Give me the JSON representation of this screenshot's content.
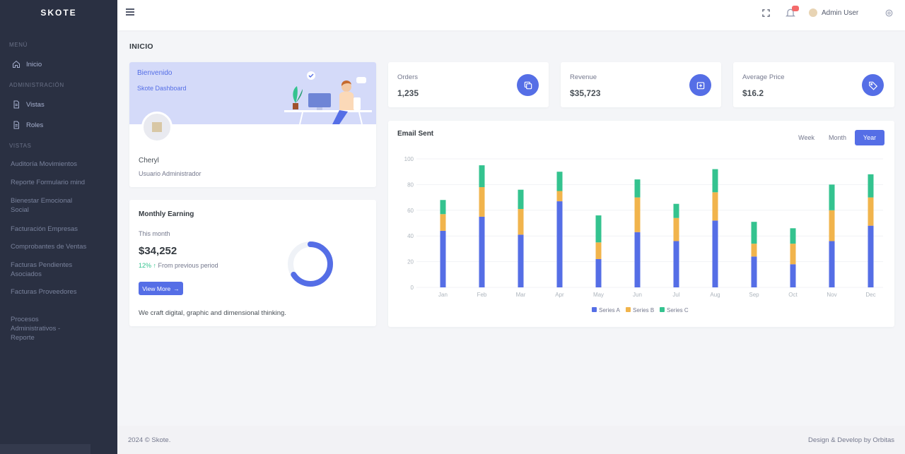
{
  "app": {
    "logo": "SKOTE"
  },
  "sidebar": {
    "section_menu": "MENÚ",
    "inicio": "Inicio",
    "section_admin": "ADMINISTRACIÓN",
    "vistas": "Vistas",
    "roles": "Roles",
    "section_vistas": "VISTAS",
    "links": [
      "Auditoría Movimientos",
      "Reporte Formulario mind",
      "Bienestar Emocional Social",
      "Facturación Empresas",
      "Comprobantes de Ventas",
      "Facturas Pendientes Asociados",
      "Facturas Proveedores",
      "Procesos Administrativos - Reporte"
    ]
  },
  "topbar": {
    "user_name": "Admin User"
  },
  "page": {
    "title": "INICIO"
  },
  "welcome": {
    "title": "Bienvenido",
    "subtitle": "Skote Dashboard",
    "name": "Cheryl",
    "role": "Usuario Administrador"
  },
  "earnings": {
    "title": "Monthly Earning",
    "sub": "This month",
    "value": "$34,252",
    "trend_pct": "12%",
    "trend_text": "From previous period",
    "button": "View More",
    "foot": "We craft digital, graphic and dimensional thinking."
  },
  "stats": [
    {
      "label": "Orders",
      "value": "1,235"
    },
    {
      "label": "Revenue",
      "value": "$35,723"
    },
    {
      "label": "Average Price",
      "value": "$16.2"
    }
  ],
  "chart_tabs": [
    "Week",
    "Month",
    "Year"
  ],
  "colors": {
    "accent": "#556ee6",
    "series_a": "#556ee6",
    "series_b": "#f1b44c",
    "series_c": "#34c38f"
  },
  "chart_data": {
    "type": "bar",
    "title": "Email Sent",
    "categories": [
      "Jan",
      "Feb",
      "Mar",
      "Apr",
      "May",
      "Jun",
      "Jul",
      "Aug",
      "Sep",
      "Oct",
      "Nov",
      "Dec"
    ],
    "series": [
      {
        "name": "Series A",
        "values": [
          44,
          55,
          41,
          67,
          22,
          43,
          36,
          52,
          24,
          18,
          36,
          48
        ]
      },
      {
        "name": "Series B",
        "values": [
          13,
          23,
          20,
          8,
          13,
          27,
          18,
          22,
          10,
          16,
          24,
          22
        ]
      },
      {
        "name": "Series C",
        "values": [
          11,
          17,
          15,
          15,
          21,
          14,
          11,
          18,
          17,
          12,
          20,
          18
        ]
      }
    ],
    "ylim": [
      0,
      100
    ],
    "yticks": [
      0,
      20,
      40,
      60,
      80,
      100
    ],
    "stacked": true,
    "legend": "bottom"
  },
  "footer": {
    "left": "2024 © Skote.",
    "right": "Design & Develop by Orbitas"
  }
}
